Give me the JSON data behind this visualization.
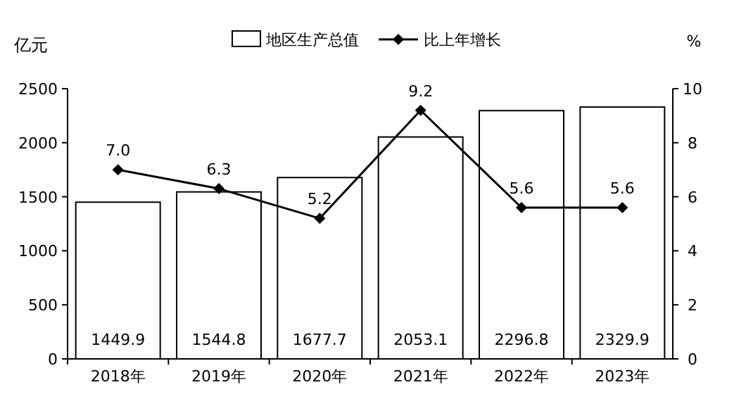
{
  "chart_data": {
    "type": "bar",
    "ylabel": "亿元",
    "y2label": "%",
    "categories": [
      "2018年",
      "2019年",
      "2020年",
      "2021年",
      "2022年",
      "2023年"
    ],
    "series": [
      {
        "name": "地区生产总值",
        "color": "#ffffff",
        "values": [
          1449.9,
          1544.8,
          1677.7,
          2053.1,
          2296.8,
          2329.9
        ],
        "value_labels": [
          "1449.9",
          "1544.8",
          "1677.7",
          "2053.1",
          "2296.8",
          "2329.9"
        ]
      },
      {
        "name": "比上年增长",
        "type": "line",
        "axis": "y2",
        "color": "#000000",
        "marker": "diamond",
        "values": [
          7.0,
          6.3,
          5.2,
          9.2,
          5.6,
          5.6
        ],
        "value_labels": [
          "7.0",
          "6.3",
          "5.2",
          "9.2",
          "5.6",
          "5.6"
        ]
      }
    ],
    "ylim": [
      0,
      2500
    ],
    "yticks": [
      0,
      500,
      1000,
      1500,
      2000,
      2500
    ],
    "y2lim": [
      0,
      10
    ],
    "y2ticks": [
      0,
      2,
      4,
      6,
      8,
      10
    ],
    "grid": false,
    "legend": "top"
  }
}
